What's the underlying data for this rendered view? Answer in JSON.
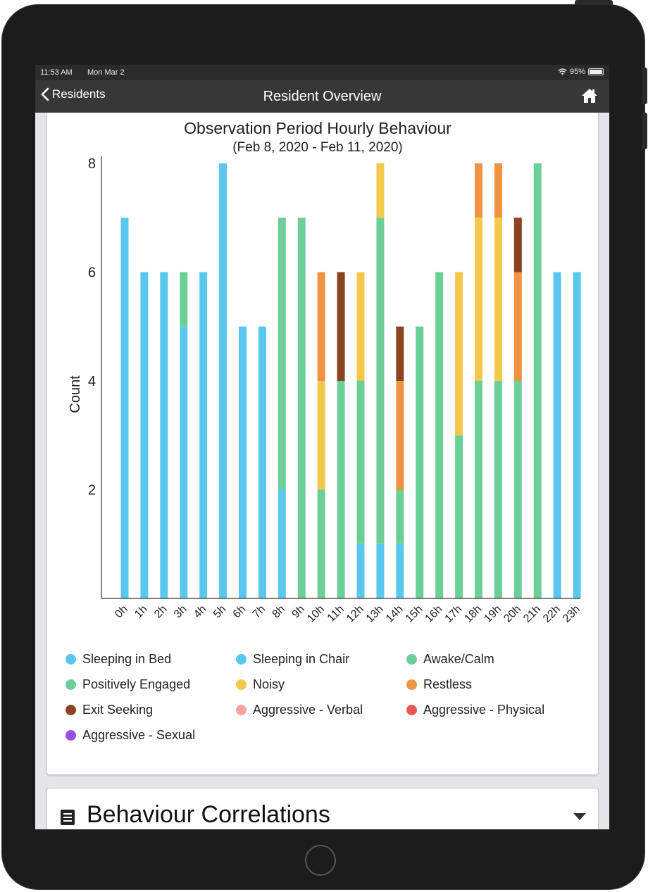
{
  "status_bar": {
    "time": "11:53 AM",
    "date": "Mon Mar 2",
    "battery": "95%"
  },
  "nav": {
    "back_label": "Residents",
    "title": "Resident Overview"
  },
  "legend": [
    {
      "label": "Sleeping in Bed",
      "color": "#5ac8ee"
    },
    {
      "label": "Sleeping in Chair",
      "color": "#5ac8ee"
    },
    {
      "label": "Awake/Calm",
      "color": "#6dcf98"
    },
    {
      "label": "Positively Engaged",
      "color": "#6dcf98"
    },
    {
      "label": "Noisy",
      "color": "#f4c84a"
    },
    {
      "label": "Restless",
      "color": "#f19342"
    },
    {
      "label": "Exit Seeking",
      "color": "#8a4420"
    },
    {
      "label": "Aggressive - Verbal",
      "color": "#f7a3a3"
    },
    {
      "label": "Aggressive - Physical",
      "color": "#e85555"
    },
    {
      "label": "Aggressive - Sexual",
      "color": "#9b4fe0"
    }
  ],
  "section": {
    "title": "Behaviour Correlations"
  },
  "chart_data": {
    "type": "bar",
    "stacked": true,
    "title": "Observation Period Hourly Behaviour",
    "subtitle": "(Feb 8, 2020 - Feb 11, 2020)",
    "xlabel": "",
    "ylabel": "Count",
    "ylim": [
      0,
      8
    ],
    "yticks": [
      2,
      4,
      6,
      8
    ],
    "grid": false,
    "categories": [
      "0h",
      "1h",
      "2h",
      "3h",
      "4h",
      "5h",
      "6h",
      "7h",
      "8h",
      "9h",
      "10h",
      "11h",
      "12h",
      "13h",
      "14h",
      "15h",
      "16h",
      "17h",
      "18h",
      "19h",
      "20h",
      "21h",
      "22h",
      "23h"
    ],
    "series": [
      {
        "name": "Sleeping in Bed",
        "color": "#5ac8ee",
        "values": [
          7,
          6,
          6,
          5,
          6,
          8,
          5,
          5,
          2,
          0,
          0,
          0,
          1,
          1,
          1,
          0,
          0,
          0,
          0,
          0,
          0,
          0,
          6,
          6
        ]
      },
      {
        "name": "Sleeping in Chair",
        "color": "#5ac8ee",
        "values": [
          0,
          0,
          0,
          0,
          0,
          0,
          0,
          0,
          0,
          0,
          0,
          0,
          0,
          0,
          0,
          0,
          0,
          0,
          0,
          0,
          0,
          0,
          0,
          0
        ]
      },
      {
        "name": "Awake/Calm",
        "color": "#6dcf98",
        "values": [
          0,
          0,
          0,
          1,
          0,
          0,
          0,
          0,
          4,
          6,
          2,
          4,
          3,
          6,
          1,
          5,
          6,
          3,
          4,
          4,
          4,
          6,
          0,
          0
        ]
      },
      {
        "name": "Positively Engaged",
        "color": "#6dcf98",
        "values": [
          0,
          0,
          0,
          0,
          0,
          0,
          0,
          0,
          1,
          1,
          0,
          0,
          0,
          0,
          0,
          0,
          0,
          0,
          0,
          0,
          0,
          2,
          0,
          0
        ]
      },
      {
        "name": "Noisy",
        "color": "#f4c84a",
        "values": [
          0,
          0,
          0,
          0,
          0,
          0,
          0,
          0,
          0,
          0,
          2,
          0,
          2,
          1,
          0,
          0,
          0,
          3,
          3,
          3,
          0,
          0,
          0,
          0
        ]
      },
      {
        "name": "Restless",
        "color": "#f19342",
        "values": [
          0,
          0,
          0,
          0,
          0,
          0,
          0,
          0,
          0,
          0,
          2,
          0,
          0,
          0,
          2,
          0,
          0,
          0,
          1,
          1,
          2,
          0,
          0,
          0
        ]
      },
      {
        "name": "Exit Seeking",
        "color": "#8a4420",
        "values": [
          0,
          0,
          0,
          0,
          0,
          0,
          0,
          0,
          0,
          0,
          0,
          2,
          0,
          0,
          1,
          0,
          0,
          0,
          0,
          0,
          1,
          0,
          0,
          0
        ]
      },
      {
        "name": "Aggressive - Verbal",
        "color": "#f7a3a3",
        "values": [
          0,
          0,
          0,
          0,
          0,
          0,
          0,
          0,
          0,
          0,
          0,
          0,
          0,
          0,
          0,
          0,
          0,
          0,
          0,
          0,
          0,
          0,
          0,
          0
        ]
      },
      {
        "name": "Aggressive - Physical",
        "color": "#e85555",
        "values": [
          0,
          0,
          0,
          0,
          0,
          0,
          0,
          0,
          0,
          0,
          0,
          0,
          0,
          0,
          0,
          0,
          0,
          0,
          0,
          0,
          0,
          0,
          0,
          0
        ]
      },
      {
        "name": "Aggressive - Sexual",
        "color": "#9b4fe0",
        "values": [
          0,
          0,
          0,
          0,
          0,
          0,
          0,
          0,
          0,
          0,
          0,
          0,
          0,
          0,
          0,
          0,
          0,
          0,
          0,
          0,
          0,
          0,
          0,
          0
        ]
      }
    ]
  }
}
